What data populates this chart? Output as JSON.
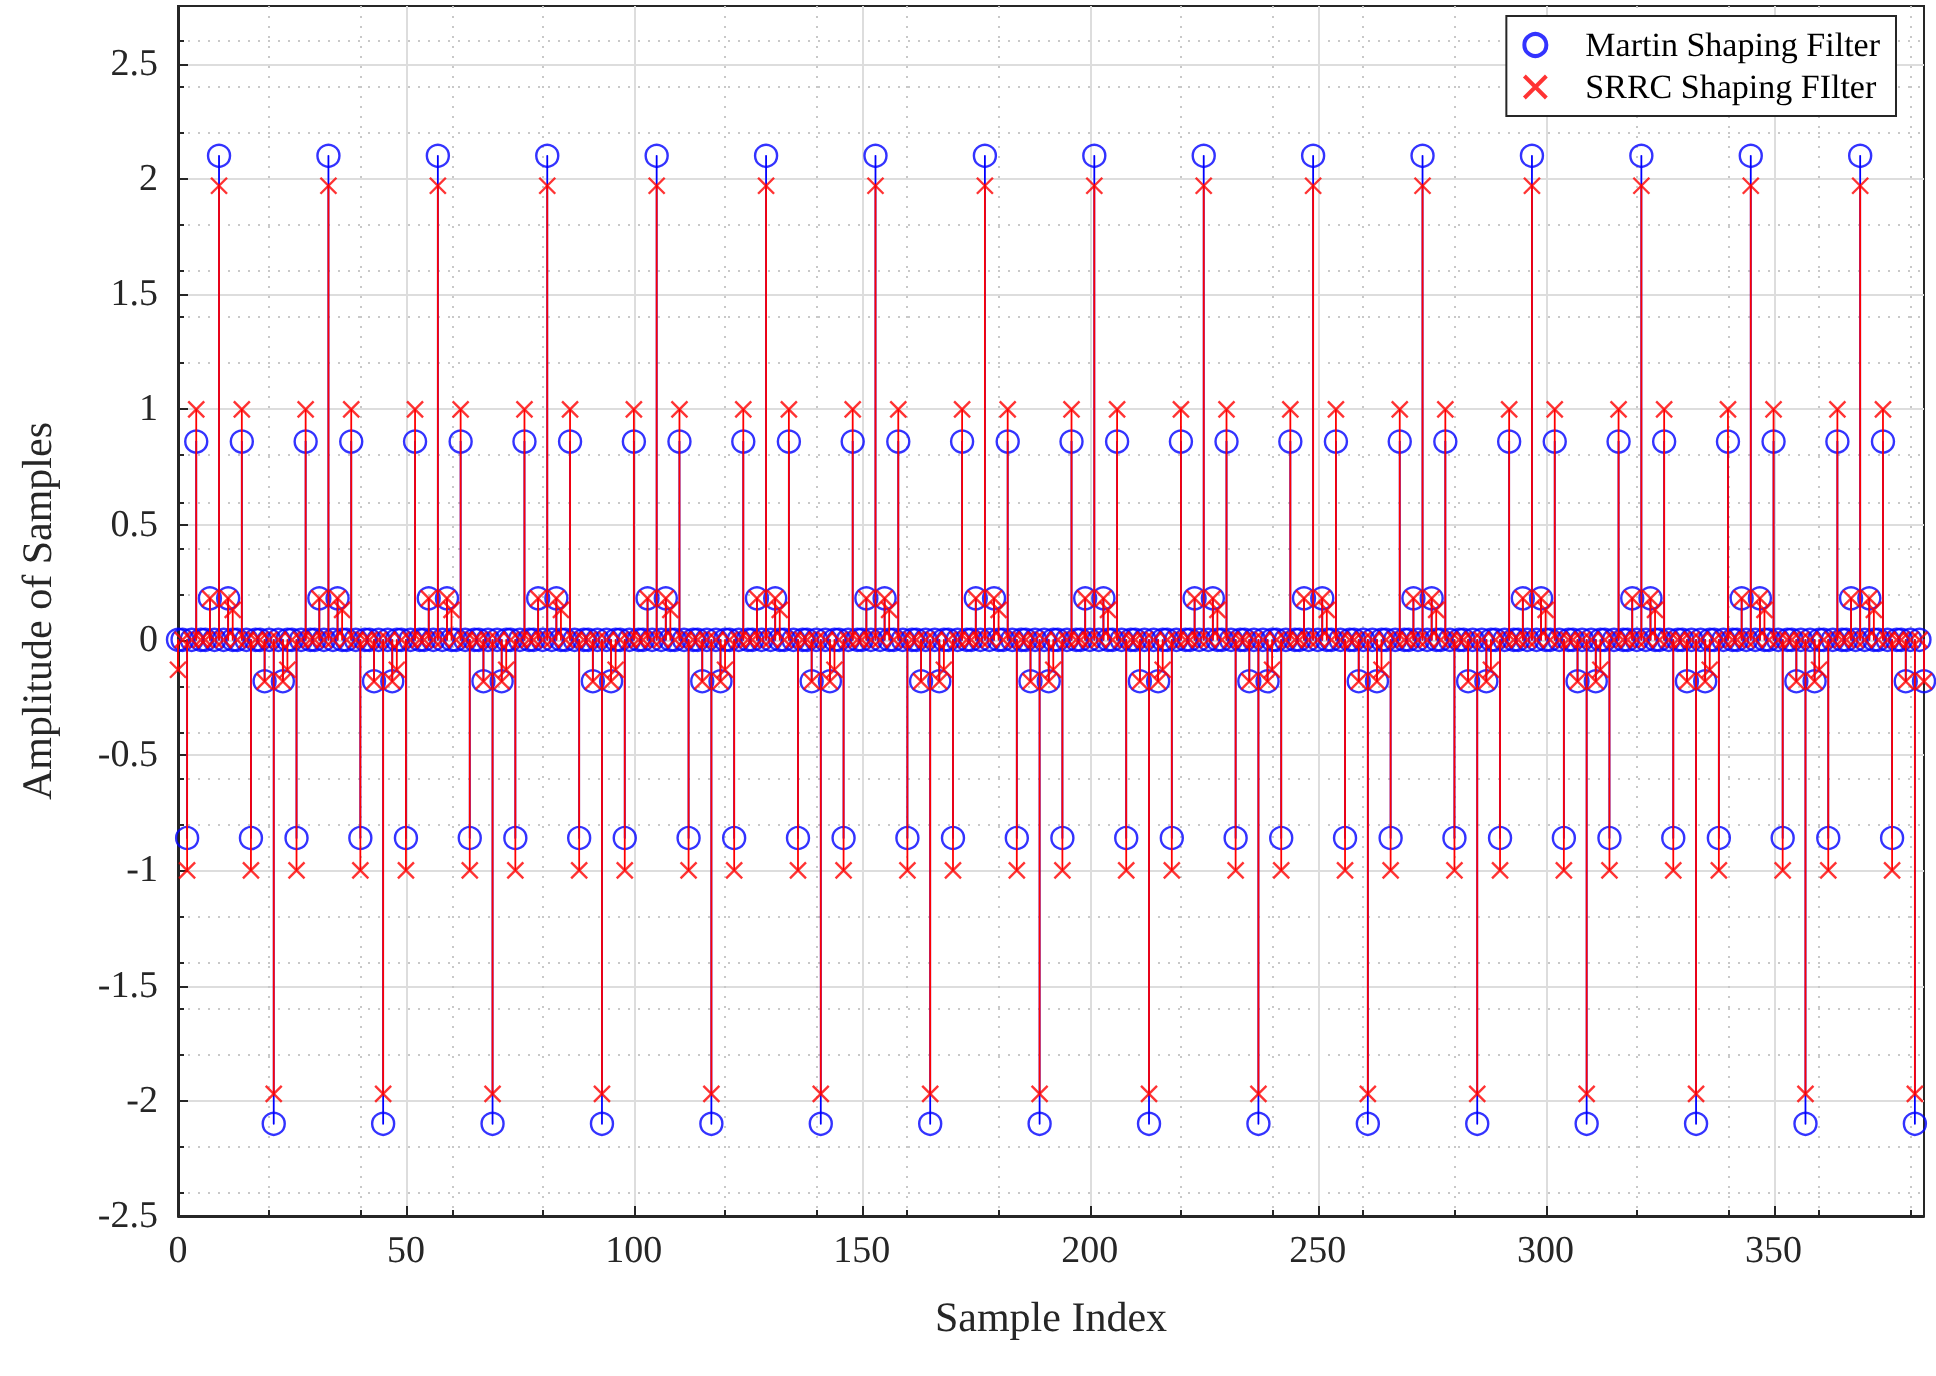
{
  "chart_data": {
    "type": "lollipop",
    "xlabel": "Sample Index",
    "ylabel": "Amplitude of Samples",
    "xlim": [
      0,
      383
    ],
    "xticks": [
      0,
      50,
      100,
      150,
      200,
      250,
      300,
      350
    ],
    "ylim": [
      -2.5,
      2.75
    ],
    "yticks": [
      -2.5,
      -2,
      -1.5,
      -1,
      -0.5,
      0,
      0.5,
      1,
      1.5,
      2,
      2.5
    ],
    "grid": true,
    "legend": "top right",
    "line_style": "solid",
    "x": [
      0,
      1,
      2,
      3,
      4,
      5,
      6,
      7,
      8,
      9,
      10,
      11,
      12,
      13,
      14,
      15,
      16,
      17,
      18,
      19,
      20,
      21,
      22,
      23,
      24,
      25,
      26,
      27,
      28,
      29,
      30,
      31,
      32,
      33,
      34,
      35,
      36,
      37,
      38,
      39,
      40,
      41,
      42,
      43,
      44,
      45,
      46,
      47,
      48,
      49,
      50,
      51,
      52,
      53,
      54,
      55,
      56,
      57,
      58,
      59,
      60,
      61,
      62,
      63,
      64,
      65,
      66,
      67,
      68,
      69,
      70,
      71,
      72,
      73,
      74,
      75,
      76,
      77,
      78,
      79,
      80,
      81,
      82,
      83,
      84,
      85,
      86,
      87,
      88,
      89,
      90,
      91,
      92,
      93,
      94,
      95,
      96,
      97,
      98,
      99,
      100,
      101,
      102,
      103,
      104,
      105,
      106,
      107,
      108,
      109,
      110,
      111,
      112,
      113,
      114,
      115,
      116,
      117,
      118,
      119,
      120,
      121,
      122,
      123,
      124,
      125,
      126,
      127,
      128,
      129,
      130,
      131,
      132,
      133,
      134,
      135,
      136,
      137,
      138,
      139,
      140,
      141,
      142,
      143,
      144,
      145,
      146,
      147,
      148,
      149,
      150,
      151,
      152,
      153,
      154,
      155,
      156,
      157,
      158,
      159,
      160,
      161,
      162,
      163,
      164,
      165,
      166,
      167,
      168,
      169,
      170,
      171,
      172,
      173,
      174,
      175,
      176,
      177,
      178,
      179,
      180,
      181,
      182,
      183,
      184,
      185,
      186,
      187,
      188,
      189,
      190,
      191,
      192,
      193,
      194,
      195,
      196,
      197,
      198,
      199,
      200,
      201,
      202,
      203,
      204,
      205,
      206,
      207,
      208,
      209,
      210,
      211,
      212,
      213,
      214,
      215,
      216,
      217,
      218,
      219,
      220,
      221,
      222,
      223,
      224,
      225,
      226,
      227,
      228,
      229,
      230,
      231,
      232,
      233,
      234,
      235,
      236,
      237,
      238,
      239,
      240,
      241,
      242,
      243,
      244,
      245,
      246,
      247,
      248,
      249,
      250,
      251,
      252,
      253,
      254,
      255,
      256,
      257,
      258,
      259,
      260,
      261,
      262,
      263,
      264,
      265,
      266,
      267,
      268,
      269,
      270,
      271,
      272,
      273,
      274,
      275,
      276,
      277,
      278,
      279,
      280,
      281,
      282,
      283,
      284,
      285,
      286,
      287,
      288,
      289,
      290,
      291,
      292,
      293,
      294,
      295,
      296,
      297,
      298,
      299,
      300,
      301,
      302,
      303,
      304,
      305,
      306,
      307,
      308,
      309,
      310,
      311,
      312,
      313,
      314,
      315,
      316,
      317,
      318,
      319,
      320,
      321,
      322,
      323,
      324,
      325,
      326,
      327,
      328,
      329,
      330,
      331,
      332,
      333,
      334,
      335,
      336,
      337,
      338,
      339,
      340,
      341,
      342,
      343,
      344,
      345,
      346,
      347,
      348,
      349,
      350,
      351,
      352,
      353,
      354,
      355,
      356,
      357,
      358,
      359,
      360,
      361,
      362,
      363,
      364,
      365,
      366,
      367,
      368,
      369,
      370,
      371,
      372,
      373,
      374,
      375,
      376,
      377,
      378,
      379,
      380,
      381,
      382,
      383
    ],
    "series": [
      {
        "name": "Martin Shaping Filter",
        "color": "#0000ff",
        "marker": "circle",
        "values": [
          0,
          0,
          -0.86,
          0,
          0.86,
          0,
          0,
          0.18,
          0,
          2.1,
          0,
          0.18,
          0,
          0,
          0.86,
          0,
          -0.86,
          0,
          0,
          -0.18,
          0,
          -2.1,
          0,
          -0.18,
          0,
          0,
          -0.86,
          0,
          0.86,
          0,
          0,
          0.18,
          0,
          2.1,
          0,
          0.18,
          0,
          0,
          0.86,
          0,
          -0.86,
          0,
          0,
          -0.18,
          0,
          -2.1,
          0,
          -0.18,
          0,
          0,
          -0.86,
          0,
          0.86,
          0,
          0,
          0.18,
          0,
          2.1,
          0,
          0.18,
          0,
          0,
          0.86,
          0,
          -0.86,
          0,
          0,
          -0.18,
          0,
          -2.1,
          0,
          -0.18,
          0,
          0,
          -0.86,
          0,
          0.86,
          0,
          0,
          0.18,
          0,
          2.1,
          0,
          0.18,
          0,
          0,
          0.86,
          0,
          -0.86,
          0,
          0,
          -0.18,
          0,
          -2.1,
          0,
          -0.18,
          0,
          0,
          -0.86,
          0,
          0.86,
          0,
          0,
          0.18,
          0,
          2.1,
          0,
          0.18,
          0,
          0,
          0.86,
          0,
          -0.86,
          0,
          0,
          -0.18,
          0,
          -2.1,
          0,
          -0.18,
          0,
          0,
          -0.86,
          0,
          0.86,
          0,
          0,
          0.18,
          0,
          2.1,
          0,
          0.18,
          0,
          0,
          0.86,
          0,
          -0.86,
          0,
          0,
          -0.18,
          0,
          -2.1,
          0,
          -0.18,
          0,
          0,
          -0.86,
          0,
          0.86,
          0,
          0,
          0.18,
          0,
          2.1,
          0,
          0.18,
          0,
          0,
          0.86,
          0,
          -0.86,
          0,
          0,
          -0.18,
          0,
          -2.1,
          0,
          -0.18,
          0,
          0,
          -0.86,
          0,
          0.86,
          0,
          0,
          0.18,
          0,
          2.1,
          0,
          0.18,
          0,
          0,
          0.86,
          0,
          -0.86,
          0,
          0,
          -0.18,
          0,
          -2.1,
          0,
          -0.18,
          0,
          0,
          -0.86,
          0,
          0.86,
          0,
          0,
          0.18,
          0,
          2.1,
          0,
          0.18,
          0,
          0,
          0.86,
          0,
          -0.86,
          0,
          0,
          -0.18,
          0,
          -2.1,
          0,
          -0.18,
          0,
          0,
          -0.86,
          0,
          0.86,
          0,
          0,
          0.18,
          0,
          2.1,
          0,
          0.18,
          0,
          0,
          0.86,
          0,
          -0.86,
          0,
          0,
          -0.18,
          0,
          -2.1,
          0,
          -0.18,
          0,
          0,
          -0.86,
          0,
          0.86,
          0,
          0,
          0.18,
          0,
          2.1,
          0,
          0.18,
          0,
          0,
          0.86,
          0,
          -0.86,
          0,
          0,
          -0.18,
          0,
          -2.1,
          0,
          -0.18,
          0,
          0,
          -0.86,
          0,
          0.86,
          0,
          0,
          0.18,
          0,
          2.1,
          0,
          0.18,
          0,
          0,
          0.86,
          0,
          -0.86,
          0,
          0,
          -0.18,
          0,
          -2.1,
          0,
          -0.18,
          0,
          0,
          -0.86,
          0,
          0.86,
          0,
          0,
          0.18,
          0,
          2.1,
          0,
          0.18,
          0,
          0,
          0.86,
          0,
          -0.86,
          0,
          0,
          -0.18,
          0,
          -2.1,
          0,
          -0.18,
          0,
          0,
          -0.86,
          0,
          0.86,
          0,
          0,
          0.18,
          0,
          2.1,
          0,
          0.18,
          0,
          0,
          0.86,
          0,
          -0.86,
          0,
          0,
          -0.18,
          0,
          -2.1,
          0,
          -0.18,
          0,
          0,
          -0.86,
          0,
          0.86,
          0,
          0,
          0.18,
          0,
          2.1,
          0,
          0.18,
          0,
          0,
          0.86,
          0,
          -0.86,
          0,
          0,
          -0.18,
          0,
          -2.1,
          0,
          -0.18,
          0,
          0,
          -0.86,
          0,
          0.86,
          0,
          0,
          0.18,
          0,
          2.1,
          0,
          0.18,
          0,
          0,
          0.86,
          0,
          -0.86,
          0,
          0,
          -0.18,
          0,
          -2.1,
          0,
          -0.18
        ]
      },
      {
        "name": "SRRC Shaping FIlter",
        "color": "#ff0000",
        "marker": "cross",
        "values": [
          -0.13,
          0,
          -1,
          0,
          1,
          0,
          0,
          0.18,
          0,
          1.97,
          0,
          0.18,
          0.13,
          0,
          1,
          0,
          -1,
          0,
          0,
          -0.18,
          0,
          -1.97,
          0,
          -0.18,
          -0.13,
          0,
          -1,
          0,
          1,
          0,
          0,
          0.18,
          0,
          1.97,
          0,
          0.18,
          0.13,
          0,
          1,
          0,
          -1,
          0,
          0,
          -0.18,
          0,
          -1.97,
          0,
          -0.18,
          -0.13,
          0,
          -1,
          0,
          1,
          0,
          0,
          0.18,
          0,
          1.97,
          0,
          0.18,
          0.13,
          0,
          1,
          0,
          -1,
          0,
          0,
          -0.18,
          0,
          -1.97,
          0,
          -0.18,
          -0.13,
          0,
          -1,
          0,
          1,
          0,
          0,
          0.18,
          0,
          1.97,
          0,
          0.18,
          0.13,
          0,
          1,
          0,
          -1,
          0,
          0,
          -0.18,
          0,
          -1.97,
          0,
          -0.18,
          -0.13,
          0,
          -1,
          0,
          1,
          0,
          0,
          0.18,
          0,
          1.97,
          0,
          0.18,
          0.13,
          0,
          1,
          0,
          -1,
          0,
          0,
          -0.18,
          0,
          -1.97,
          0,
          -0.18,
          -0.13,
          0,
          -1,
          0,
          1,
          0,
          0,
          0.18,
          0,
          1.97,
          0,
          0.18,
          0.13,
          0,
          1,
          0,
          -1,
          0,
          0,
          -0.18,
          0,
          -1.97,
          0,
          -0.18,
          -0.13,
          0,
          -1,
          0,
          1,
          0,
          0,
          0.18,
          0,
          1.97,
          0,
          0.18,
          0.13,
          0,
          1,
          0,
          -1,
          0,
          0,
          -0.18,
          0,
          -1.97,
          0,
          -0.18,
          -0.13,
          0,
          -1,
          0,
          1,
          0,
          0,
          0.18,
          0,
          1.97,
          0,
          0.18,
          0.13,
          0,
          1,
          0,
          -1,
          0,
          0,
          -0.18,
          0,
          -1.97,
          0,
          -0.18,
          -0.13,
          0,
          -1,
          0,
          1,
          0,
          0,
          0.18,
          0,
          1.97,
          0,
          0.18,
          0.13,
          0,
          1,
          0,
          -1,
          0,
          0,
          -0.18,
          0,
          -1.97,
          0,
          -0.18,
          -0.13,
          0,
          -1,
          0,
          1,
          0,
          0,
          0.18,
          0,
          1.97,
          0,
          0.18,
          0.13,
          0,
          1,
          0,
          -1,
          0,
          0,
          -0.18,
          0,
          -1.97,
          0,
          -0.18,
          -0.13,
          0,
          -1,
          0,
          1,
          0,
          0,
          0.18,
          0,
          1.97,
          0,
          0.18,
          0.13,
          0,
          1,
          0,
          -1,
          0,
          0,
          -0.18,
          0,
          -1.97,
          0,
          -0.18,
          -0.13,
          0,
          -1,
          0,
          1,
          0,
          0,
          0.18,
          0,
          1.97,
          0,
          0.18,
          0.13,
          0,
          1,
          0,
          -1,
          0,
          0,
          -0.18,
          0,
          -1.97,
          0,
          -0.18,
          -0.13,
          0,
          -1,
          0,
          1,
          0,
          0,
          0.18,
          0,
          1.97,
          0,
          0.18,
          0.13,
          0,
          1,
          0,
          -1,
          0,
          0,
          -0.18,
          0,
          -1.97,
          0,
          -0.18,
          -0.13,
          0,
          -1,
          0,
          1,
          0,
          0,
          0.18,
          0,
          1.97,
          0,
          0.18,
          0.13,
          0,
          1,
          0,
          -1,
          0,
          0,
          -0.18,
          0,
          -1.97,
          0,
          -0.18,
          -0.13,
          0,
          -1,
          0,
          1,
          0,
          0,
          0.18,
          0,
          1.97,
          0,
          0.18,
          0.13,
          0,
          1,
          0,
          -1,
          0,
          0,
          -0.18,
          0,
          -1.97,
          0,
          -0.18,
          -0.13,
          0,
          -1,
          0,
          1,
          0,
          0,
          0.18,
          0,
          1.97,
          0,
          0.18,
          0.13,
          0,
          1,
          0,
          -1,
          0,
          0,
          -0.18,
          0,
          -1.97,
          0,
          -0.18
        ]
      }
    ]
  }
}
